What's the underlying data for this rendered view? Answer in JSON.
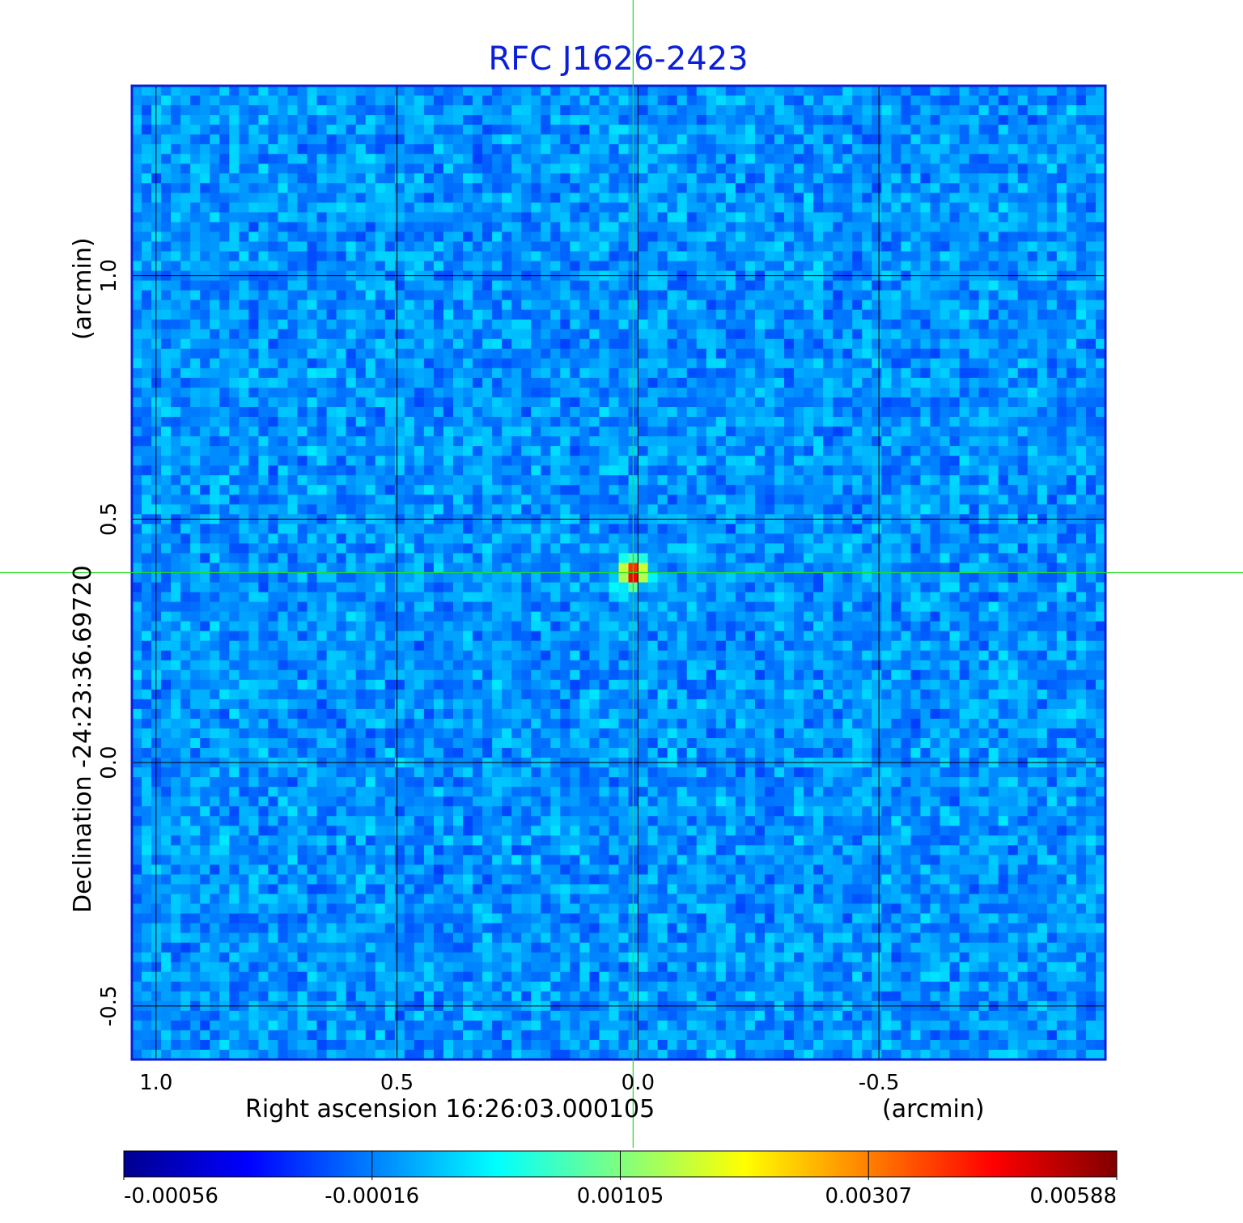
{
  "chart_data": {
    "type": "heatmap",
    "title": "RFC J1626-2423",
    "xlabel": "Right ascension  16:26:03.000105",
    "xunit": "(arcmin)",
    "ylabel": "Declination  -24:23:36.69720",
    "yunit": "(arcmin)",
    "xlim": [
      1.05,
      -0.97
    ],
    "ylim": [
      -0.61,
      1.39
    ],
    "xticks": [
      1.0,
      0.5,
      0.0,
      -0.5
    ],
    "xtick_labels": [
      "1.0",
      "0.5",
      "0.0",
      "-0.5"
    ],
    "yticks": [
      1.0,
      0.5,
      0.0,
      -0.5
    ],
    "ytick_labels": [
      "1.0",
      "0.5",
      "0.0",
      "-0.5"
    ],
    "grid": true,
    "colormap": "jet",
    "colorbar": {
      "position": "bottom",
      "ticks": [
        -0.00056,
        -0.00016,
        0.00105,
        0.00307,
        0.00588
      ],
      "tick_labels": [
        "-0.00056",
        "-0.00016",
        "0.00105",
        "0.00307",
        "0.00588"
      ]
    },
    "source": {
      "x": 0.01,
      "y": 0.39,
      "peak": 0.00588
    },
    "crosshair": {
      "x": 0.01,
      "y": 0.39,
      "color": "#22dd22"
    },
    "colors": {
      "title": "#0b1fd6",
      "frame": "#0b1fd6",
      "grid": "#000000"
    }
  }
}
